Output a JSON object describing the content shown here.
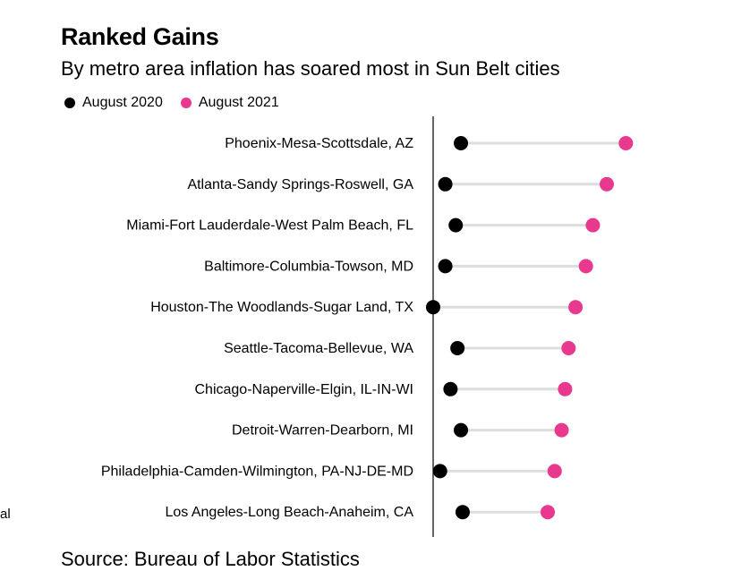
{
  "header": {
    "title": "Ranked Gains",
    "subtitle": "By metro area inflation has soared most in Sun Belt cities"
  },
  "legend": {
    "items": [
      {
        "label": "August 2020",
        "color": "#000000"
      },
      {
        "label": "August 2021",
        "color": "#e8398f"
      }
    ]
  },
  "footer": {
    "source": "Source: Bureau of Labor Statistics",
    "stray_text": "al"
  },
  "chart_data": {
    "type": "dot-range",
    "series": [
      {
        "name": "August 2020",
        "color": "#000000"
      },
      {
        "name": "August 2021",
        "color": "#e8398f"
      }
    ],
    "connector_color": "#dddddd",
    "x_axis_shown": false,
    "categories": [
      "Phoenix-Mesa-Scottsdale, AZ",
      "Atlanta-Sandy Springs-Roswell, GA",
      "Miami-Fort Lauderdale-West Palm Beach, FL",
      "Baltimore-Columbia-Towson, MD",
      "Houston-The Woodlands-Sugar Land, TX",
      "Seattle-Tacoma-Bellevue, WA",
      "Chicago-Naperville-Elgin, IL-IN-WI",
      "Detroit-Warren-Dearborn, MI",
      "Philadelphia-Camden-Wilmington, PA-NJ-DE-MD",
      "Los Angeles-Long Beach-Anaheim, CA"
    ],
    "aug2020": [
      1.6,
      0.7,
      1.3,
      0.7,
      0.0,
      1.4,
      1.0,
      1.6,
      0.4,
      1.7
    ],
    "aug2021": [
      11.1,
      10.0,
      9.2,
      8.8,
      8.2,
      7.8,
      7.6,
      7.4,
      7.0,
      6.6
    ],
    "x_range": [
      0,
      12
    ]
  }
}
